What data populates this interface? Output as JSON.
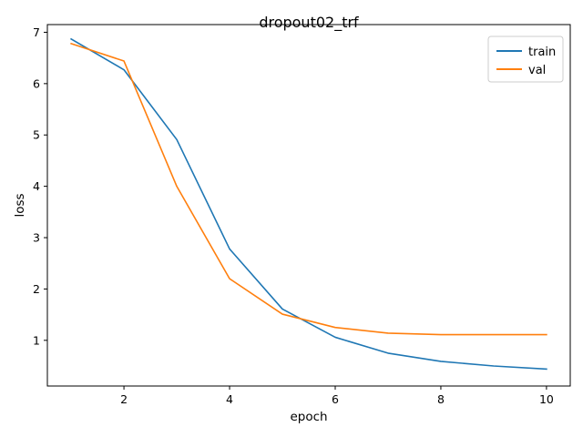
{
  "chart_data": {
    "type": "line",
    "title": "dropout02_trf",
    "xlabel": "epoch",
    "ylabel": "loss",
    "x": [
      1,
      2,
      3,
      4,
      5,
      6,
      7,
      8,
      9,
      10
    ],
    "xlim": [
      0.55,
      10.45
    ],
    "ylim": [
      0.11,
      7.15
    ],
    "xticks": [
      2,
      4,
      6,
      8,
      10
    ],
    "yticks": [
      1,
      2,
      3,
      4,
      5,
      6,
      7
    ],
    "grid": false,
    "legend_position": "top-right",
    "series": [
      {
        "name": "train",
        "color": "#1f77b4",
        "values": [
          6.87,
          6.27,
          4.91,
          2.78,
          1.61,
          1.06,
          0.75,
          0.59,
          0.5,
          0.44
        ]
      },
      {
        "name": "val",
        "color": "#ff7f0e",
        "values": [
          6.78,
          6.44,
          4.0,
          2.2,
          1.51,
          1.25,
          1.14,
          1.11,
          1.11,
          1.11
        ]
      }
    ]
  }
}
